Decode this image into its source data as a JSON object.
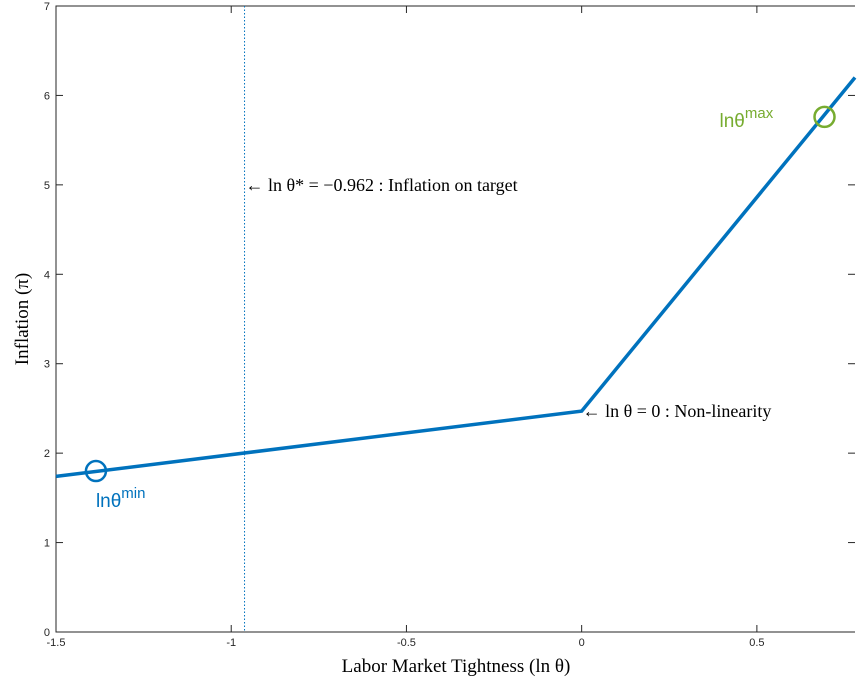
{
  "chart_data": {
    "type": "line",
    "x_label": "Labor Market Tightness (ln θ)",
    "y_label": "Inflation (π)",
    "xlim": [
      -1.5,
      0.78
    ],
    "ylim": [
      0,
      7
    ],
    "xticks": [
      -1.5,
      -1,
      -0.5,
      0,
      0.5
    ],
    "yticks": [
      0,
      1,
      2,
      3,
      4,
      5,
      6,
      7
    ],
    "series": [
      {
        "name": "Inflation",
        "color": "#0072bd",
        "x": [
          -1.5,
          0,
          0.78
        ],
        "values": [
          1.74,
          2.47,
          6.2
        ]
      }
    ],
    "points": [
      {
        "label": "lnθ",
        "sup": "min",
        "x": -1.386,
        "y": 1.8,
        "color": "#0072bd"
      },
      {
        "label": "lnθ",
        "sup": "max",
        "x": 0.693,
        "y": 5.76,
        "color": "#77ac30"
      }
    ],
    "vline": {
      "x": -0.962,
      "color": "#0072bd"
    },
    "annotations": [
      {
        "text": "← ln θ* = −0.962 : Inflation on target",
        "x": -0.962,
        "y": 5
      },
      {
        "text": "← ln θ = 0 : Non-linearity",
        "x": 0,
        "y": 2.47
      }
    ]
  }
}
